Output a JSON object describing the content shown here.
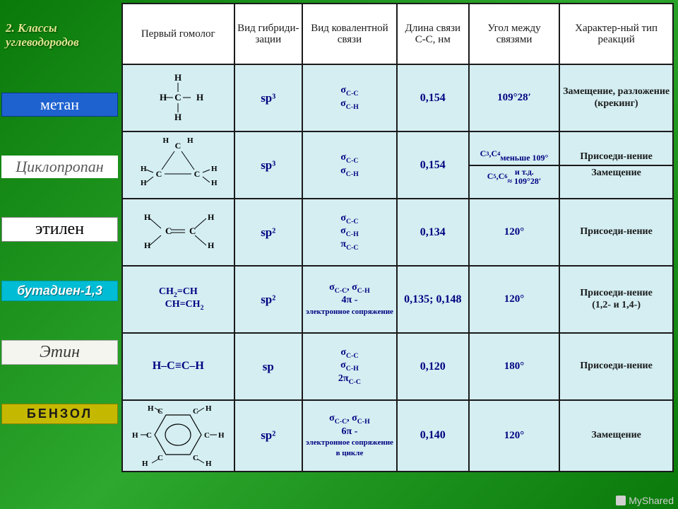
{
  "title": "2. Классы углеводородов",
  "row_labels": {
    "methane": "метан",
    "cyclopropane": "Циклопропан",
    "ethylene": "этилен",
    "butadiene": "бутадиен-1,3",
    "ethyne": "Этин",
    "benzene": "БЕНЗОЛ"
  },
  "headers": {
    "homolog": "Первый гомолог",
    "hybrid": "Вид гибриди-зации",
    "bond": "Вид ковалентной связи",
    "length": "Длина связи C-C, нм",
    "angle": "Угол между связями",
    "reaction": "Характер-ный тип реакций"
  },
  "rows": {
    "methane": {
      "structure": "H\nH–C–H\nH",
      "hybrid": "sp³",
      "bond_html": "σ<sub>C-C</sub><br>σ<sub>C-H</sub>",
      "length": "0,154",
      "angle_html": "109°28′",
      "reaction": "Замещение, разложение (крекинг)"
    },
    "cyclopropane": {
      "structure": "cyclopropane",
      "hybrid": "sp³",
      "bond_html": "σ<sub>C-C</sub><br>σ<sub>C-H</sub>",
      "length": "0,154",
      "angle_top_html": "C<sub>3</sub>,C<sub>4</sub><br>меньше 109°",
      "angle_bot_html": "C<sub>5</sub>,C<sub>6</sub> и т.д.<br>≈ 109°28′",
      "reaction_top": "Присоеди-нение",
      "reaction_bot": "Замещение"
    },
    "ethylene": {
      "structure": "ethylene",
      "hybrid": "sp²",
      "bond_html": "σ<sub>C-C</sub><br>σ<sub>C-H</sub><br>π<sub>C-C</sub>",
      "length": "0,134",
      "angle_html": "120°",
      "reaction": "Присоеди-нение"
    },
    "butadiene": {
      "structure_html": "CH<sub>2</sub>=CH<br>&nbsp;&nbsp;&nbsp;&nbsp;&nbsp;CH=CH<sub>2</sub>",
      "hybrid": "sp²",
      "bond_html": "σ<sub>C-C</sub>, σ<sub>C-H</sub><br><b>4π</b> -<br><span style='font-size:11px'>электронное сопряжение</span>",
      "length": "0,135; 0,148",
      "angle_html": "120°",
      "reaction": "Присоеди-нение\n(1,2- и 1,4-)"
    },
    "ethyne": {
      "structure": "H–C≡C–H",
      "hybrid": "sp",
      "bond_html": "σ<sub>C-C</sub><br>σ<sub>C-H</sub><br>2π<sub>C-C</sub>",
      "length": "0,120",
      "angle_html": "180°",
      "reaction": "Присоеди-нение"
    },
    "benzene": {
      "structure": "benzene",
      "hybrid": "sp²",
      "bond_html": "σ<sub>C-C</sub>, σ<sub>C-H</sub><br><b>6π</b> -<br><span style='font-size:11px'>электронное сопряжение в цикле</span>",
      "length": "0,140",
      "angle_html": "120°",
      "reaction": "Замещение"
    }
  },
  "colors": {
    "page_bg_from": "#0a7a0a",
    "page_bg_to": "#2ea82e",
    "cell_bg": "#d4eef2",
    "header_bg": "#ffffff",
    "border": "#1a1a1a",
    "data_text": "#000080",
    "reaction_text": "#1a1a1a",
    "title_text": "#dfe68f"
  },
  "watermark": "MyShared"
}
